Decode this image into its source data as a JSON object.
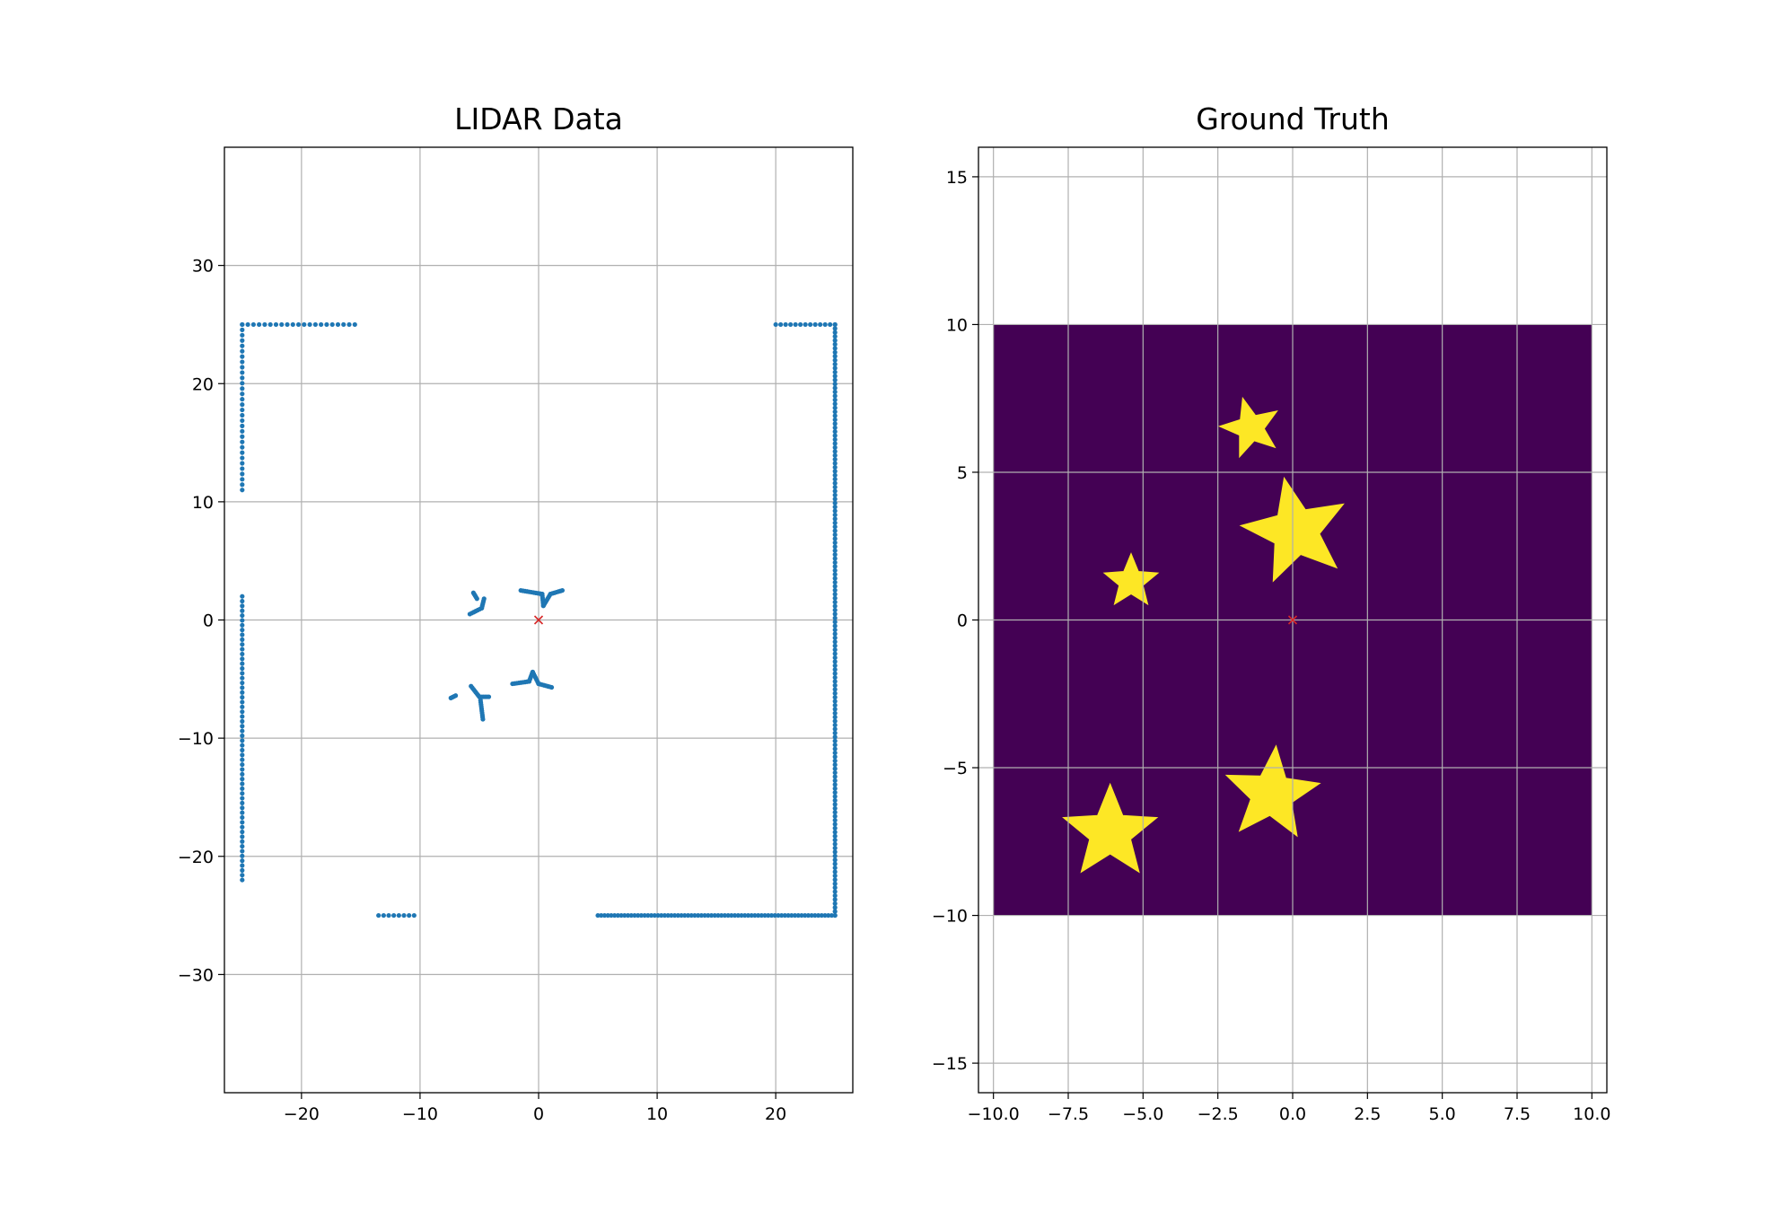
{
  "chart_data": [
    {
      "type": "scatter",
      "title": "LIDAR Data",
      "xlabel": "",
      "ylabel": "",
      "xlim": [
        -26.5,
        26.5
      ],
      "ylim": [
        -40,
        40
      ],
      "xticks": [
        -20,
        -10,
        0,
        10,
        20
      ],
      "yticks": [
        -30,
        -20,
        -10,
        0,
        10,
        20,
        30
      ],
      "xtick_labels": [
        "−20",
        "−10",
        "0",
        "10",
        "20"
      ],
      "ytick_labels": [
        "−30",
        "−20",
        "−10",
        "0",
        "10",
        "20",
        "30"
      ],
      "grid": true,
      "point_color": "#1f77b4",
      "segments": [
        {
          "from": [
            -25,
            25
          ],
          "to": [
            -15.5,
            25
          ],
          "n": 21
        },
        {
          "from": [
            -25,
            25
          ],
          "to": [
            -25,
            11
          ],
          "n": 32
        },
        {
          "from": [
            -25,
            2
          ],
          "to": [
            -25,
            -22
          ],
          "n": 60
        },
        {
          "from": [
            -13.5,
            -25
          ],
          "to": [
            -10.5,
            -25
          ],
          "n": 8
        },
        {
          "from": [
            5,
            -25
          ],
          "to": [
            25,
            -25
          ],
          "n": 72
        },
        {
          "from": [
            25,
            -25
          ],
          "to": [
            25,
            25
          ],
          "n": 150
        },
        {
          "from": [
            20,
            25
          ],
          "to": [
            25,
            25
          ],
          "n": 13
        }
      ],
      "obstacle_paths": [
        [
          [
            -1.5,
            2.5
          ],
          [
            0.3,
            2.2
          ],
          [
            0.4,
            1.2
          ],
          [
            1.0,
            2.2
          ],
          [
            2.0,
            2.5
          ]
        ],
        [
          [
            -5.5,
            2.3
          ],
          [
            -5.2,
            1.8
          ]
        ],
        [
          [
            -5.8,
            0.5
          ],
          [
            -4.8,
            1.0
          ],
          [
            -4.6,
            1.8
          ]
        ],
        [
          [
            -2.2,
            -5.4
          ],
          [
            -0.8,
            -5.2
          ],
          [
            -0.5,
            -4.4
          ],
          [
            0.0,
            -5.4
          ],
          [
            1.1,
            -5.7
          ]
        ],
        [
          [
            -5.7,
            -5.6
          ],
          [
            -5.0,
            -6.5
          ],
          [
            -4.2,
            -6.5
          ]
        ],
        [
          [
            -4.9,
            -6.8
          ],
          [
            -4.7,
            -8.4
          ]
        ],
        [
          [
            -7.4,
            -6.6
          ],
          [
            -7.0,
            -6.4
          ]
        ]
      ],
      "origin_marker": {
        "x": 0,
        "y": 0,
        "color": "#d62728"
      }
    },
    {
      "type": "heatmap",
      "title": "Ground Truth",
      "xlabel": "",
      "ylabel": "",
      "xlim": [
        -10.5,
        10.5
      ],
      "ylim": [
        -16,
        16
      ],
      "xticks": [
        -10,
        -7.5,
        -5,
        -2.5,
        0,
        2.5,
        5,
        7.5,
        10
      ],
      "yticks": [
        -15,
        -10,
        -5,
        0,
        5,
        10,
        15
      ],
      "xtick_labels": [
        "−10.0",
        "−7.5",
        "−5.0",
        "−2.5",
        "0.0",
        "2.5",
        "5.0",
        "7.5",
        "10.0"
      ],
      "ytick_labels": [
        "−15",
        "−10",
        "−5",
        "0",
        "5",
        "10",
        "15"
      ],
      "grid": true,
      "extent": [
        -10,
        10,
        -10,
        10
      ],
      "background_color": "#440154",
      "shape_color": "#fde725",
      "stars": [
        {
          "cx": -1.4,
          "cy": 6.5,
          "r_outer": 1.05,
          "r_inner": 0.45,
          "rotation_deg": 15
        },
        {
          "cx": 0.1,
          "cy": 3.0,
          "r_outer": 1.85,
          "r_inner": 0.8,
          "rotation_deg": 12
        },
        {
          "cx": -5.4,
          "cy": 1.3,
          "r_outer": 0.95,
          "r_inner": 0.42,
          "rotation_deg": 0
        },
        {
          "cx": -6.1,
          "cy": -7.2,
          "r_outer": 1.65,
          "r_inner": 0.72,
          "rotation_deg": 0
        },
        {
          "cx": -0.7,
          "cy": -5.9,
          "r_outer": 1.65,
          "r_inner": 0.72,
          "rotation_deg": -5
        }
      ],
      "origin_marker": {
        "x": 0,
        "y": 0,
        "color": "#d62728"
      }
    }
  ]
}
